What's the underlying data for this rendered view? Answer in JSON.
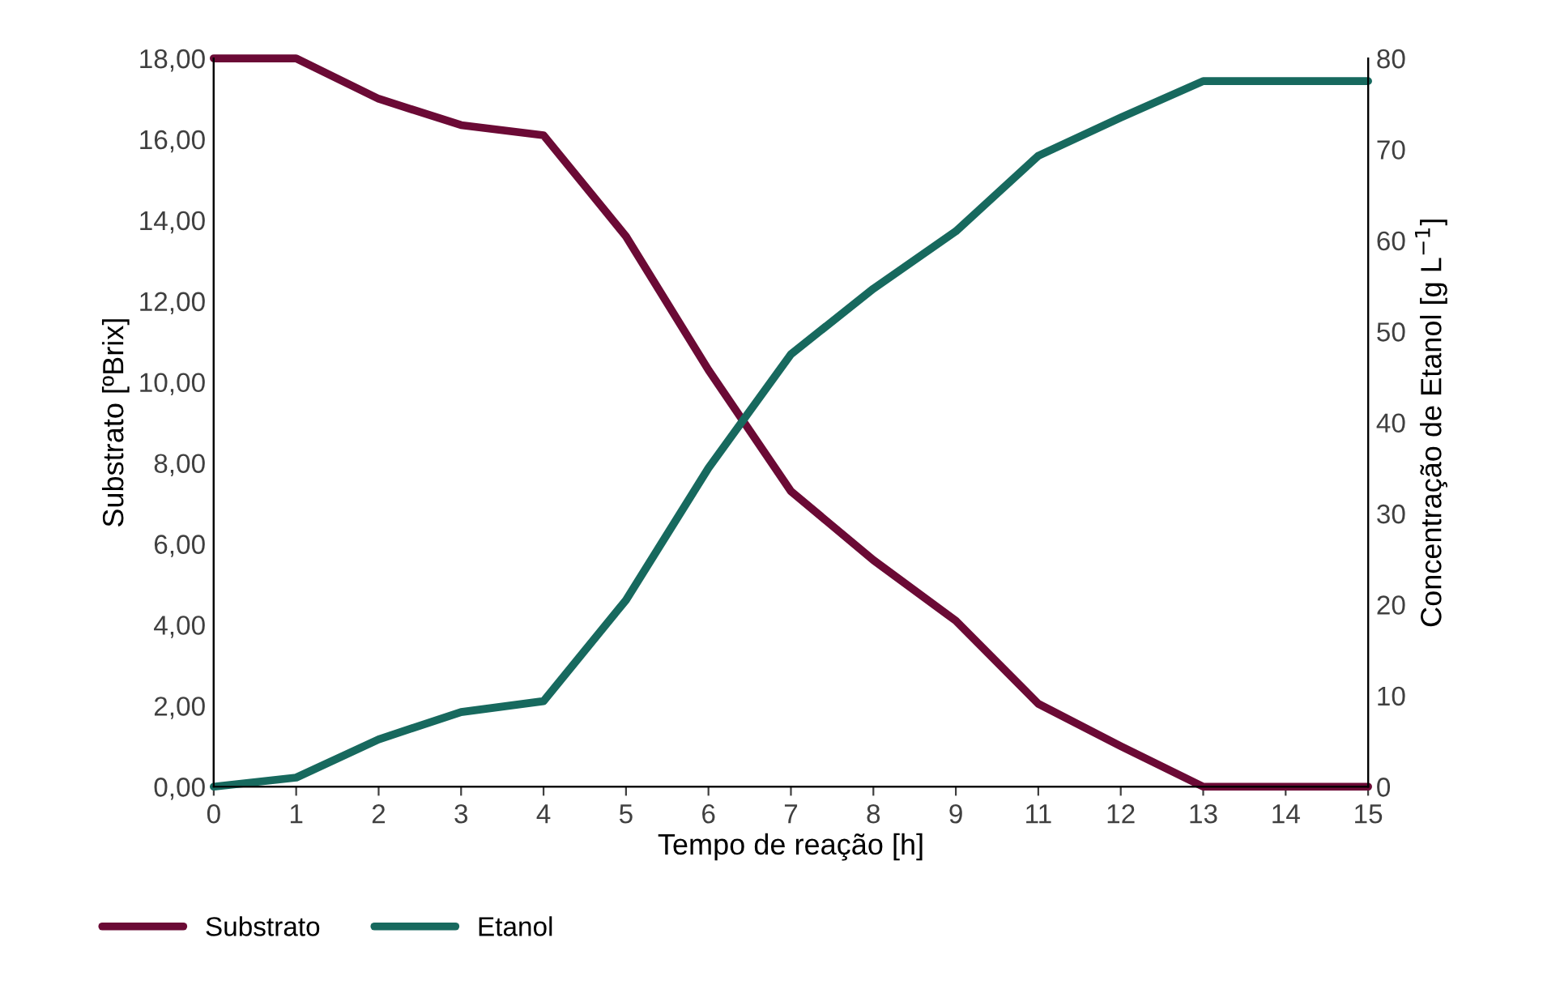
{
  "chart_data": {
    "type": "line",
    "xlabel": "Tempo de reação [h]",
    "ylabel": "Substrato [ºBrix]",
    "y2label": "Concentração de Etanol [g L$^{−1}$]",
    "categories": [
      "0",
      "1",
      "2",
      "3",
      "4",
      "5",
      "6",
      "7",
      "8",
      "9",
      "11",
      "12",
      "13",
      "14",
      "15"
    ],
    "series": [
      {
        "name": "Substrato",
        "color": "#6b0a35",
        "values": [
          18,
          18,
          17.0,
          16.35,
          16.1,
          13.6,
          10.3,
          7.3,
          5.6,
          4.1,
          2.05,
          1.0,
          0,
          0,
          0
        ]
      },
      {
        "name": "Etanol",
        "color": "#17695e",
        "axis": "y2",
        "values": [
          0,
          1,
          5.2,
          8.2,
          9.4,
          20.5,
          35,
          47.5,
          54.7,
          61,
          69.3,
          73.5,
          77.5,
          77.5,
          77.5
        ]
      }
    ],
    "ylim": [
      0,
      18
    ],
    "yticks": [
      {
        "value": 0,
        "label": "0,00"
      },
      {
        "value": 2,
        "label": "2,00"
      },
      {
        "value": 4,
        "label": "4,00"
      },
      {
        "value": 6,
        "label": "6,00"
      },
      {
        "value": 8,
        "label": "8,00"
      },
      {
        "value": 10,
        "label": "10,00"
      },
      {
        "value": 12,
        "label": "12,00"
      },
      {
        "value": 14,
        "label": "14,00"
      },
      {
        "value": 16,
        "label": "16,00"
      },
      {
        "value": 18,
        "label": "18,00"
      }
    ],
    "y2lim": [
      0,
      80
    ],
    "y2ticks": [
      0,
      10,
      20,
      30,
      40,
      50,
      60,
      70,
      80
    ],
    "grid": false,
    "legend": "bottom",
    "marker": "none",
    "line_style": "solid"
  }
}
